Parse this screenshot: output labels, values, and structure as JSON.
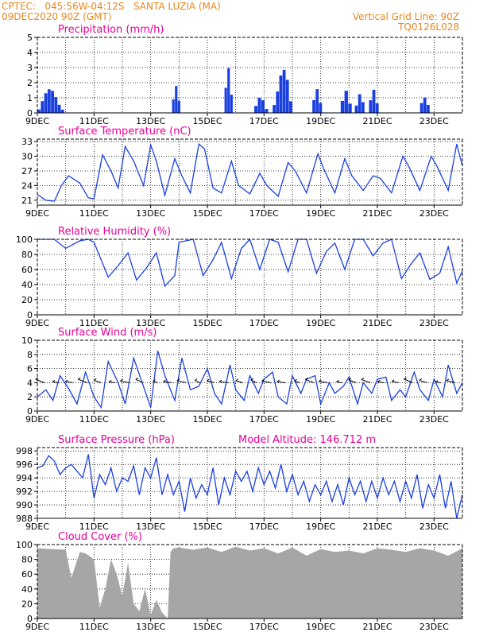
{
  "header": {
    "left_line1": "CPTEC:   045:56W-04:12S   SANTA LUZIA (MA)",
    "left_line2": "09DEC2020 90Z (GMT)",
    "right_line1": "Vertical Grid Line: 90Z",
    "right_line2": "TQ0126L028"
  },
  "colors": {
    "title": "#e8009a",
    "header": "#e8871e",
    "series": "#1a3fe0",
    "cloud": "#a6a6a6"
  },
  "chart_data": [
    {
      "type": "bar",
      "title": "Precipitation (mm/h)",
      "ylim": [
        0,
        5
      ],
      "yticks": [
        0,
        1,
        2,
        3,
        4,
        5
      ],
      "x_domain_days": [
        9,
        24
      ],
      "xtick_labels": [
        "9DEC",
        "11DEC",
        "13DEC",
        "15DEC",
        "17DEC",
        "19DEC",
        "21DEC",
        "23DEC"
      ],
      "events": [
        {
          "start": 9.0,
          "end": 9.95,
          "peak": 1.6
        },
        {
          "start": 13.75,
          "end": 14.05,
          "peak": 1.8
        },
        {
          "start": 15.6,
          "end": 15.9,
          "peak": 3.4
        },
        {
          "start": 16.65,
          "end": 17.15,
          "peak": 1.2
        },
        {
          "start": 17.3,
          "end": 18.0,
          "peak": 3.1
        },
        {
          "start": 18.7,
          "end": 19.05,
          "peak": 1.7
        },
        {
          "start": 19.7,
          "end": 20.1,
          "peak": 1.6
        },
        {
          "start": 20.2,
          "end": 20.55,
          "peak": 1.5
        },
        {
          "start": 20.7,
          "end": 21.05,
          "peak": 1.7
        },
        {
          "start": 22.5,
          "end": 22.85,
          "peak": 1.6
        }
      ]
    },
    {
      "type": "line",
      "title": "Surface Temperature (nC)",
      "ylim": [
        20,
        33.5
      ],
      "yticks": [
        21,
        24,
        27,
        30,
        33
      ],
      "x_domain_days": [
        9,
        24
      ],
      "xtick_labels": [
        "9DEC",
        "11DEC",
        "13DEC",
        "15DEC",
        "17DEC",
        "19DEC",
        "21DEC",
        "23DEC"
      ],
      "series": [
        {
          "x": [
            9.0,
            9.3,
            9.6,
            9.85,
            10.1,
            10.5,
            10.8,
            11.0,
            11.3,
            11.6,
            11.85,
            12.1,
            12.4,
            12.75,
            13.0,
            13.2,
            13.5,
            13.85,
            14.1,
            14.4,
            14.7,
            14.9,
            15.2,
            15.5,
            15.85,
            16.1,
            16.5,
            16.85,
            17.1,
            17.5,
            17.85,
            18.1,
            18.5,
            18.9,
            19.1,
            19.5,
            19.85,
            20.1,
            20.5,
            20.85,
            21.1,
            21.5,
            21.9,
            22.1,
            22.5,
            22.9,
            23.1,
            23.5,
            23.8,
            24.0
          ],
          "y": [
            22.2,
            21.0,
            20.8,
            24.0,
            26.0,
            24.5,
            21.5,
            21.3,
            30.3,
            27.0,
            23.5,
            32.0,
            29.0,
            24.0,
            32.3,
            29.0,
            22.0,
            29.5,
            26.0,
            22.5,
            32.5,
            31.5,
            23.5,
            22.5,
            29.0,
            24.0,
            22.3,
            26.5,
            24.0,
            21.8,
            28.7,
            27.0,
            22.5,
            30.5,
            27.5,
            22.5,
            29.5,
            26.0,
            23.0,
            26.0,
            25.5,
            22.5,
            30.0,
            28.0,
            23.0,
            30.0,
            28.0,
            23.0,
            32.5,
            28.0
          ]
        }
      ]
    },
    {
      "type": "line",
      "title": "Relative Humidity (%)",
      "ylim": [
        0,
        100
      ],
      "yticks": [
        0,
        20,
        40,
        60,
        80,
        100
      ],
      "x_domain_days": [
        9,
        24
      ],
      "xtick_labels": [
        "9DEC",
        "11DEC",
        "13DEC",
        "15DEC",
        "17DEC",
        "19DEC",
        "21DEC",
        "23DEC"
      ],
      "series": [
        {
          "x": [
            9.0,
            9.3,
            9.6,
            10.0,
            10.5,
            10.8,
            11.0,
            11.5,
            11.85,
            12.2,
            12.5,
            12.85,
            13.2,
            13.5,
            13.85,
            14.0,
            14.5,
            14.85,
            15.2,
            15.5,
            15.85,
            16.2,
            16.5,
            16.85,
            17.2,
            17.5,
            17.85,
            18.2,
            18.5,
            18.85,
            19.2,
            19.5,
            19.85,
            20.2,
            20.5,
            20.85,
            21.2,
            21.5,
            21.85,
            22.2,
            22.5,
            22.85,
            23.2,
            23.5,
            23.8,
            24.0
          ],
          "y": [
            100,
            100,
            100,
            88,
            98,
            100,
            96,
            50,
            65,
            82,
            46,
            62,
            82,
            38,
            52,
            96,
            100,
            52,
            73,
            96,
            48,
            88,
            100,
            60,
            100,
            96,
            57,
            100,
            100,
            55,
            84,
            95,
            60,
            100,
            100,
            78,
            95,
            100,
            48,
            68,
            82,
            47,
            55,
            90,
            42,
            58
          ]
        }
      ]
    },
    {
      "type": "line",
      "title": "Surface Wind (m/s)",
      "ylim": [
        0,
        10
      ],
      "yticks": [
        0,
        2,
        4,
        6,
        8,
        10
      ],
      "x_domain_days": [
        9,
        24
      ],
      "xtick_labels": [
        "9DEC",
        "11DEC",
        "13DEC",
        "15DEC",
        "17DEC",
        "19DEC",
        "21DEC",
        "23DEC"
      ],
      "series": [
        {
          "x": [
            9.0,
            9.3,
            9.55,
            9.8,
            10.1,
            10.4,
            10.7,
            11.0,
            11.25,
            11.5,
            11.85,
            12.1,
            12.4,
            12.7,
            13.0,
            13.25,
            13.5,
            13.85,
            14.1,
            14.4,
            14.7,
            15.0,
            15.25,
            15.5,
            15.8,
            16.0,
            16.3,
            16.5,
            16.8,
            17.0,
            17.3,
            17.5,
            17.8,
            18.0,
            18.3,
            18.5,
            18.8,
            19.0,
            19.3,
            19.5,
            19.8,
            20.0,
            20.3,
            20.5,
            20.8,
            21.0,
            21.3,
            21.5,
            21.8,
            22.0,
            22.3,
            22.5,
            22.8,
            23.0,
            23.3,
            23.5,
            23.8,
            24.0
          ],
          "y": [
            2.0,
            3.0,
            1.5,
            5.0,
            3.2,
            1.0,
            5.5,
            2.0,
            0.5,
            7.0,
            4.0,
            1.0,
            7.5,
            4.0,
            0.5,
            8.5,
            5.0,
            1.5,
            7.5,
            3.0,
            3.5,
            6.0,
            2.5,
            1.0,
            6.5,
            3.0,
            1.5,
            5.0,
            2.5,
            4.5,
            5.5,
            2.0,
            1.0,
            5.0,
            2.5,
            4.5,
            5.0,
            1.0,
            4.0,
            2.5,
            3.5,
            4.8,
            1.0,
            4.0,
            2.5,
            4.5,
            4.8,
            1.5,
            3.0,
            2.0,
            5.5,
            3.0,
            1.5,
            4.5,
            2.0,
            6.5,
            2.5,
            4.0
          ]
        }
      ],
      "vectors_note": "wind direction arrows every 6h"
    },
    {
      "type": "line",
      "title": "Surface Pressure (hPa)",
      "annotation": "Model Altitude: 146.712  m",
      "ylim": [
        988,
        998.5
      ],
      "yticks": [
        988,
        990,
        992,
        994,
        996,
        998
      ],
      "x_domain_days": [
        9,
        24
      ],
      "xtick_labels": [
        "9DEC",
        "11DEC",
        "13DEC",
        "15DEC",
        "17DEC",
        "19DEC",
        "21DEC",
        "23DEC"
      ],
      "series": [
        {
          "x": [
            9.0,
            9.2,
            9.4,
            9.6,
            9.8,
            10.0,
            10.2,
            10.4,
            10.6,
            10.8,
            11.0,
            11.2,
            11.4,
            11.6,
            11.8,
            12.0,
            12.2,
            12.4,
            12.6,
            12.8,
            13.0,
            13.2,
            13.4,
            13.6,
            13.8,
            14.0,
            14.2,
            14.4,
            14.6,
            14.8,
            15.0,
            15.2,
            15.4,
            15.6,
            15.8,
            16.0,
            16.2,
            16.4,
            16.6,
            16.8,
            17.0,
            17.2,
            17.4,
            17.6,
            17.8,
            18.0,
            18.2,
            18.4,
            18.6,
            18.8,
            19.0,
            19.2,
            19.4,
            19.6,
            19.8,
            20.0,
            20.2,
            20.4,
            20.6,
            20.8,
            21.0,
            21.2,
            21.4,
            21.6,
            21.8,
            22.0,
            22.2,
            22.4,
            22.6,
            22.8,
            23.0,
            23.2,
            23.4,
            23.6,
            23.8,
            24.0
          ],
          "y": [
            995.5,
            995.8,
            997.3,
            996.5,
            994.5,
            995.5,
            996.0,
            995.0,
            994.0,
            997.5,
            991.0,
            994.5,
            993.0,
            995.5,
            992.0,
            994.0,
            993.5,
            995.8,
            991.5,
            995.5,
            994.0,
            997.0,
            991.5,
            994.5,
            991.5,
            993.5,
            989.0,
            994.0,
            991.0,
            993.0,
            991.5,
            995.5,
            990.0,
            994.0,
            991.5,
            995.0,
            993.5,
            995.0,
            992.0,
            995.5,
            993.0,
            995.0,
            992.5,
            996.0,
            992.0,
            994.5,
            991.5,
            993.5,
            990.5,
            993.0,
            991.5,
            993.5,
            990.5,
            993.0,
            990.0,
            994.0,
            991.5,
            993.5,
            990.5,
            993.5,
            991.0,
            994.0,
            991.5,
            993.5,
            990.5,
            993.5,
            991.0,
            994.5,
            989.5,
            993.0,
            991.0,
            994.5,
            989.5,
            993.5,
            988.0,
            991.5
          ]
        }
      ]
    },
    {
      "type": "area",
      "title": "Cloud Cover (%)",
      "ylim": [
        0,
        100
      ],
      "yticks": [
        0,
        20,
        40,
        60,
        80,
        100
      ],
      "x_domain_days": [
        9,
        24
      ],
      "xtick_labels": [
        "9DEC",
        "11DEC",
        "13DEC",
        "15DEC",
        "17DEC",
        "19DEC",
        "21DEC",
        "23DEC"
      ],
      "series": [
        {
          "x": [
            9.0,
            9.5,
            10.0,
            10.2,
            10.5,
            10.7,
            11.0,
            11.2,
            11.4,
            11.6,
            11.8,
            12.0,
            12.2,
            12.4,
            12.6,
            12.8,
            13.0,
            13.2,
            13.4,
            13.6,
            13.7,
            13.8,
            14.0,
            14.5,
            15.0,
            15.5,
            16.0,
            16.5,
            17.0,
            17.5,
            18.0,
            18.5,
            19.0,
            19.5,
            20.0,
            20.5,
            21.0,
            21.5,
            22.0,
            22.5,
            23.0,
            23.5,
            24.0
          ],
          "y": [
            95,
            94,
            93,
            55,
            90,
            88,
            80,
            15,
            40,
            80,
            60,
            30,
            75,
            20,
            10,
            40,
            5,
            25,
            8,
            0,
            90,
            95,
            96,
            93,
            96,
            90,
            97,
            92,
            95,
            88,
            96,
            85,
            94,
            90,
            92,
            88,
            95,
            93,
            90,
            95,
            92,
            85,
            95
          ]
        }
      ]
    }
  ]
}
